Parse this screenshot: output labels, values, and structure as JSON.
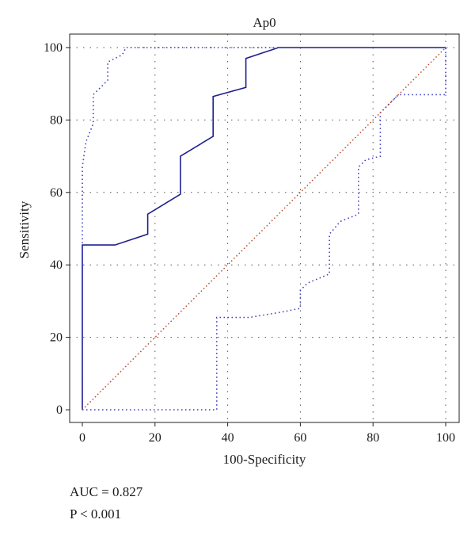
{
  "chart_data": {
    "type": "line",
    "title": "Ap0",
    "xlabel": "100-Specificity",
    "ylabel": "Sensitivity",
    "xlim": [
      0,
      100
    ],
    "ylim": [
      0,
      100
    ],
    "xticks": [
      0,
      20,
      40,
      60,
      80,
      100
    ],
    "yticks": [
      0,
      20,
      40,
      60,
      80,
      100
    ],
    "grid": true,
    "colors": {
      "roc": "#1f1f8f",
      "ci": "#3d3dbf",
      "reference": "#b84a2a"
    },
    "series": [
      {
        "role": "roc",
        "style": "solid",
        "x": [
          0,
          0,
          9,
          18,
          18,
          27,
          27,
          36,
          36,
          45,
          45,
          54,
          100
        ],
        "y": [
          0,
          45.5,
          45.5,
          48.5,
          54,
          59.5,
          70,
          75.5,
          86.5,
          89,
          97,
          100,
          100
        ]
      },
      {
        "role": "ci-upper",
        "style": "dotted",
        "x": [
          0,
          0,
          1,
          3,
          3,
          5,
          7,
          7,
          9,
          11,
          12,
          100
        ],
        "y": [
          0,
          67,
          74,
          79,
          87,
          89,
          91,
          96,
          97,
          98,
          100,
          100
        ]
      },
      {
        "role": "ci-lower",
        "style": "dotted",
        "x": [
          0,
          36,
          37,
          37,
          46,
          55,
          60,
          60,
          62,
          68,
          68,
          71,
          76,
          76,
          78,
          82,
          82,
          87,
          100,
          100
        ],
        "y": [
          0,
          0,
          0,
          25.5,
          25.5,
          27,
          28,
          33,
          35,
          37.5,
          48.5,
          52,
          54,
          67,
          69,
          70,
          82,
          87,
          87,
          100
        ]
      },
      {
        "role": "reference",
        "style": "dotted",
        "x": [
          0,
          100
        ],
        "y": [
          0,
          100
        ]
      }
    ]
  },
  "stats": {
    "auc": "AUC = 0.827",
    "p": "P < 0.001"
  }
}
